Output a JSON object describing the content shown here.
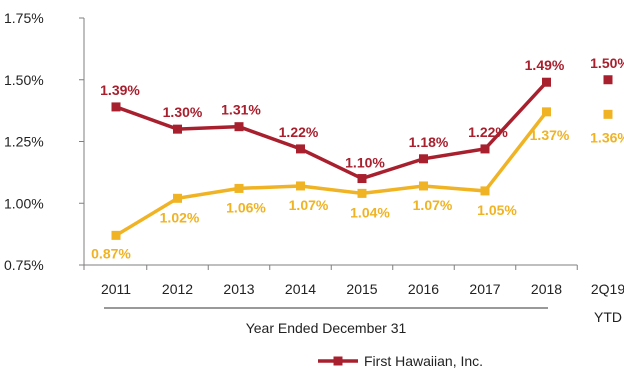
{
  "chart_data": {
    "type": "line",
    "categories": [
      "2011",
      "2012",
      "2013",
      "2014",
      "2015",
      "2016",
      "2017",
      "2018",
      "2Q19"
    ],
    "category_sublabels": {
      "2Q19": "YTD"
    },
    "xlabel": "Year Ended December 31",
    "ylim": [
      0.75,
      1.75
    ],
    "yticks": [
      "0.75%",
      "1.00%",
      "1.25%",
      "1.50%",
      "1.75%"
    ],
    "legend_position": "bottom",
    "series": [
      {
        "name": "First Hawaiian, Inc.",
        "color": "#a8202e",
        "values": [
          1.39,
          1.3,
          1.31,
          1.22,
          1.1,
          1.18,
          1.22,
          1.49,
          1.5
        ],
        "labels": [
          "1.39%",
          "1.30%",
          "1.31%",
          "1.22%",
          "1.10%",
          "1.18%",
          "1.22%",
          "1.49%",
          "1.50%"
        ]
      },
      {
        "color": "#f0b323",
        "values": [
          0.87,
          1.02,
          1.06,
          1.07,
          1.04,
          1.07,
          1.05,
          1.37,
          1.36
        ],
        "labels": [
          "0.87%",
          "1.02%",
          "1.06%",
          "1.07%",
          "1.04%",
          "1.07%",
          "1.05%",
          "1.37%",
          "1.36%"
        ]
      }
    ]
  }
}
